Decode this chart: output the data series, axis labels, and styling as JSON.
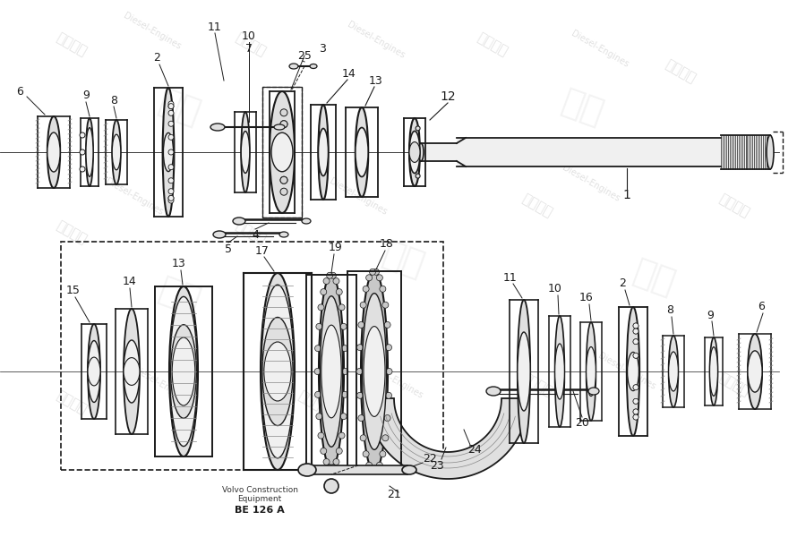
{
  "background_color": "#ffffff",
  "line_color": "#1a1a1a",
  "fill_light": "#f0f0f0",
  "fill_mid": "#e0e0e0",
  "fill_dark": "#c8c8c8",
  "gray": "#888888",
  "footer1": "Volvo Construction",
  "footer2": "Equipment",
  "footer3": "BE 126 A"
}
